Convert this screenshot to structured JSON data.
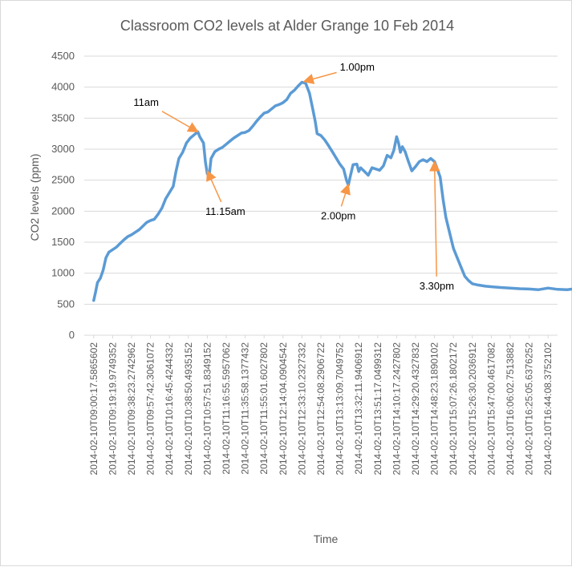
{
  "chart_data": {
    "type": "line",
    "title": "Classroom CO2 levels at Alder Grange 10 Feb 2014",
    "xlabel": "Time",
    "ylabel": "CO2 levels (ppm)",
    "ylim": [
      0,
      4500
    ],
    "yticks": [
      0,
      500,
      1000,
      1500,
      2000,
      2500,
      3000,
      3500,
      4000,
      4500
    ],
    "grid": true,
    "legend": "none",
    "colors": {
      "series": "#5B9BD5",
      "annotation": "#F79646",
      "grid": "#D9D9D9",
      "text": "#595959"
    },
    "x_tick_labels": [
      "2014-02-10T09:00:17.5865602",
      "2014-02-10T09:19:19.9749352",
      "2014-02-10T09:38:23.2742962",
      "2014-02-10T09:57:42.3061072",
      "2014-02-10T10:16:45.4244332",
      "2014-02-10T10:38:50.4935152",
      "2014-02-10T10:57:51.8349152",
      "2014-02-10T11:16:55.5957062",
      "2014-02-10T11:35:58.1377432",
      "2014-02-10T11:55:01.6027802",
      "2014-02-10T12:14:04.0904542",
      "2014-02-10T12:33:10.2327332",
      "2014-02-10T12:54:08.2906722",
      "2014-02-10T13:13:09.7049752",
      "2014-02-10T13:32:11.9406912",
      "2014-02-10T13:51:17.0499312",
      "2014-02-10T14:10:17.2427802",
      "2014-02-10T14:29:20.4327832",
      "2014-02-10T14:48:23.1890102",
      "2014-02-10T15:07:26.1802172",
      "2014-02-10T15:26:30.2036912",
      "2014-02-10T15:47:00.4617082",
      "2014-02-10T16:06:02.7513882",
      "2014-02-10T16:25:05.6376252",
      "2014-02-10T16:44:08.3752102"
    ],
    "series": [
      {
        "name": "",
        "points": [
          [
            0,
            560
          ],
          [
            0.1,
            700
          ],
          [
            0.2,
            850
          ],
          [
            0.35,
            920
          ],
          [
            0.5,
            1050
          ],
          [
            0.65,
            1250
          ],
          [
            0.8,
            1340
          ],
          [
            1.0,
            1380
          ],
          [
            1.2,
            1420
          ],
          [
            1.4,
            1480
          ],
          [
            1.6,
            1540
          ],
          [
            1.8,
            1590
          ],
          [
            2.0,
            1620
          ],
          [
            2.2,
            1660
          ],
          [
            2.4,
            1700
          ],
          [
            2.6,
            1760
          ],
          [
            2.8,
            1820
          ],
          [
            3.0,
            1850
          ],
          [
            3.2,
            1870
          ],
          [
            3.4,
            1950
          ],
          [
            3.6,
            2050
          ],
          [
            3.8,
            2200
          ],
          [
            4.0,
            2300
          ],
          [
            4.2,
            2400
          ],
          [
            4.35,
            2650
          ],
          [
            4.5,
            2850
          ],
          [
            4.7,
            2950
          ],
          [
            4.9,
            3100
          ],
          [
            5.1,
            3180
          ],
          [
            5.3,
            3230
          ],
          [
            5.5,
            3280
          ],
          [
            5.6,
            3200
          ],
          [
            5.7,
            3150
          ],
          [
            5.8,
            3100
          ],
          [
            5.9,
            2800
          ],
          [
            6.0,
            2600
          ],
          [
            6.1,
            2580
          ],
          [
            6.2,
            2850
          ],
          [
            6.4,
            2960
          ],
          [
            6.6,
            3000
          ],
          [
            6.8,
            3030
          ],
          [
            7.0,
            3080
          ],
          [
            7.2,
            3130
          ],
          [
            7.4,
            3180
          ],
          [
            7.6,
            3220
          ],
          [
            7.8,
            3260
          ],
          [
            8.0,
            3270
          ],
          [
            8.2,
            3300
          ],
          [
            8.4,
            3370
          ],
          [
            8.6,
            3450
          ],
          [
            8.8,
            3520
          ],
          [
            9.0,
            3580
          ],
          [
            9.2,
            3600
          ],
          [
            9.4,
            3650
          ],
          [
            9.6,
            3700
          ],
          [
            9.8,
            3720
          ],
          [
            10.0,
            3750
          ],
          [
            10.2,
            3800
          ],
          [
            10.4,
            3900
          ],
          [
            10.6,
            3950
          ],
          [
            10.8,
            4020
          ],
          [
            11.0,
            4080
          ],
          [
            11.2,
            4060
          ],
          [
            11.4,
            3900
          ],
          [
            11.6,
            3600
          ],
          [
            11.7,
            3450
          ],
          [
            11.8,
            3250
          ],
          [
            12.0,
            3220
          ],
          [
            12.2,
            3150
          ],
          [
            12.4,
            3060
          ],
          [
            12.6,
            2960
          ],
          [
            12.8,
            2860
          ],
          [
            13.0,
            2760
          ],
          [
            13.2,
            2680
          ],
          [
            13.35,
            2500
          ],
          [
            13.45,
            2420
          ],
          [
            13.55,
            2560
          ],
          [
            13.7,
            2750
          ],
          [
            13.9,
            2760
          ],
          [
            14.0,
            2640
          ],
          [
            14.1,
            2700
          ],
          [
            14.3,
            2640
          ],
          [
            14.5,
            2580
          ],
          [
            14.7,
            2700
          ],
          [
            14.9,
            2680
          ],
          [
            15.1,
            2660
          ],
          [
            15.3,
            2730
          ],
          [
            15.5,
            2900
          ],
          [
            15.7,
            2860
          ],
          [
            15.85,
            2980
          ],
          [
            16.0,
            3200
          ],
          [
            16.1,
            3100
          ],
          [
            16.2,
            2950
          ],
          [
            16.3,
            3040
          ],
          [
            16.45,
            2960
          ],
          [
            16.6,
            2820
          ],
          [
            16.8,
            2650
          ],
          [
            17.0,
            2720
          ],
          [
            17.2,
            2800
          ],
          [
            17.4,
            2830
          ],
          [
            17.6,
            2800
          ],
          [
            17.8,
            2850
          ],
          [
            18.0,
            2800
          ],
          [
            18.1,
            2720
          ],
          [
            18.3,
            2550
          ],
          [
            18.45,
            2200
          ],
          [
            18.6,
            1900
          ],
          [
            18.8,
            1650
          ],
          [
            19.0,
            1400
          ],
          [
            19.2,
            1250
          ],
          [
            19.4,
            1100
          ],
          [
            19.6,
            950
          ],
          [
            19.8,
            880
          ],
          [
            20.0,
            830
          ],
          [
            20.3,
            810
          ],
          [
            20.7,
            790
          ],
          [
            21.1,
            780
          ],
          [
            21.5,
            770
          ],
          [
            22.0,
            760
          ],
          [
            22.5,
            750
          ],
          [
            23.0,
            745
          ],
          [
            23.5,
            735
          ],
          [
            24.0,
            760
          ],
          [
            24.5,
            740
          ],
          [
            25.0,
            735
          ],
          [
            25.3,
            745
          ]
        ]
      }
    ],
    "annotations": [
      {
        "text": "11am",
        "point": [
          5.5,
          3280
        ],
        "label_pos": [
          2.1,
          3700
        ]
      },
      {
        "text": "11.15am",
        "point": [
          6.0,
          2650
        ],
        "label_pos": [
          5.9,
          1940
        ]
      },
      {
        "text": "1.00pm",
        "point": [
          11.1,
          4090
        ],
        "label_pos": [
          13.0,
          4270
        ]
      },
      {
        "text": "2.00pm",
        "point": [
          13.45,
          2430
        ],
        "label_pos": [
          12.0,
          1870
        ]
      },
      {
        "text": "3.30pm",
        "point": [
          18.0,
          2800
        ],
        "label_pos": [
          17.2,
          740
        ]
      }
    ]
  }
}
